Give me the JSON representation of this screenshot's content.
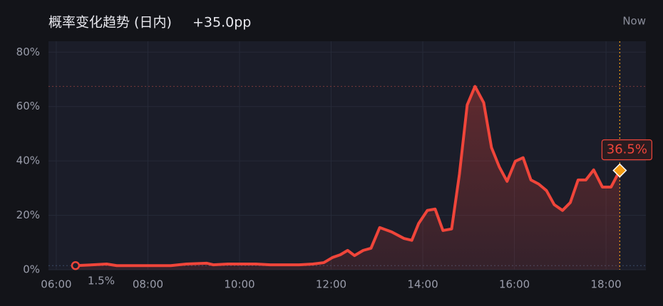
{
  "chart_data": {
    "type": "line",
    "title": "概率变化趋势 (日内)",
    "change": "+35.0pp",
    "now_label": "Now",
    "first_value_label": "1.5%",
    "last_value_label": "36.5%",
    "x": [
      6.42,
      6.79,
      7.1,
      7.32,
      7.88,
      8.5,
      8.84,
      9.28,
      9.43,
      9.74,
      10.36,
      10.67,
      11.3,
      11.6,
      11.84,
      12.03,
      12.2,
      12.36,
      12.51,
      12.7,
      12.87,
      13.06,
      13.32,
      13.59,
      13.76,
      13.91,
      14.1,
      14.27,
      14.44,
      14.63,
      14.8,
      14.97,
      15.14,
      15.33,
      15.5,
      15.67,
      15.84,
      16.02,
      16.19,
      16.36,
      16.53,
      16.7,
      16.87,
      17.05,
      17.22,
      17.39,
      17.56,
      17.73,
      17.92,
      18.11,
      18.3
    ],
    "series": [
      {
        "color": "#f0453a",
        "values": [
          1.5,
          1.8,
          2.1,
          1.5,
          1.5,
          1.5,
          2.1,
          2.4,
          1.8,
          2.1,
          2.1,
          1.8,
          1.8,
          2.1,
          2.6,
          4.5,
          5.5,
          7.1,
          5.2,
          7.1,
          7.9,
          15.5,
          13.9,
          11.5,
          10.8,
          17.0,
          21.8,
          22.3,
          14.4,
          15.0,
          35.1,
          60.6,
          67.4,
          61.4,
          44.9,
          37.8,
          32.5,
          39.9,
          41.2,
          33.0,
          31.5,
          29.1,
          23.9,
          21.8,
          24.7,
          33.0,
          33.0,
          36.7,
          30.4,
          30.4,
          36.5
        ]
      }
    ],
    "xlim": [
      5.83,
      18.87
    ],
    "ylim": [
      0,
      84
    ],
    "xticks": [
      {
        "value": 6,
        "label": "06:00"
      },
      {
        "value": 8,
        "label": "08:00"
      },
      {
        "value": 10,
        "label": "10:00"
      },
      {
        "value": 12,
        "label": "12:00"
      },
      {
        "value": 14,
        "label": "14:00"
      },
      {
        "value": 16,
        "label": "16:00"
      },
      {
        "value": 18,
        "label": "18:00"
      }
    ],
    "yticks": [
      {
        "value": 0,
        "label": "0%"
      },
      {
        "value": 20,
        "label": "20%"
      },
      {
        "value": 40,
        "label": "40%"
      },
      {
        "value": 60,
        "label": "60%"
      },
      {
        "value": 80,
        "label": "80%"
      }
    ],
    "grid": true,
    "end_marker_color": "#f39c12"
  }
}
